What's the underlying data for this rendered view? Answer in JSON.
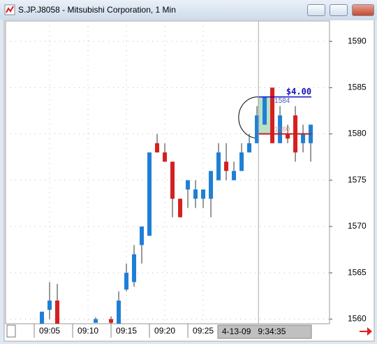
{
  "window": {
    "title": "S.JP.J8058 - Mitsubishi Corporation, 1 Min"
  },
  "chart_data": {
    "type": "candlestick",
    "ylim": [
      1559.5,
      1592.2
    ],
    "yticks": [
      1560,
      1565,
      1570,
      1575,
      1580,
      1585,
      1590
    ],
    "xlim": [
      -4.73,
      37.45
    ],
    "xticks": [
      {
        "value": 1,
        "label": "09:05"
      },
      {
        "value": 6,
        "label": "09:10"
      },
      {
        "value": 11,
        "label": "09:15"
      },
      {
        "value": 16,
        "label": "09:20"
      },
      {
        "value": 21,
        "label": "09:25"
      }
    ],
    "grid": true,
    "up_color": "#1e7fd6",
    "down_color": "#d42020",
    "candles": [
      {
        "x": 0,
        "open": 1559.4,
        "high": 1560.8,
        "low": 1559.4,
        "close": 1560.8
      },
      {
        "x": 1,
        "open": 1561,
        "high": 1564,
        "low": 1560,
        "close": 1562
      },
      {
        "x": 2,
        "open": 1562,
        "high": 1563.8,
        "low": 1559.4,
        "close": 1559.4
      },
      {
        "x": 7,
        "open": 1559.6,
        "high": 1560.2,
        "low": 1559.6,
        "close": 1560
      },
      {
        "x": 9,
        "open": 1560,
        "high": 1560.3,
        "low": 1559.4,
        "close": 1559.6
      },
      {
        "x": 10,
        "open": 1559.5,
        "high": 1563,
        "low": 1559.4,
        "close": 1562
      },
      {
        "x": 11,
        "open": 1563.2,
        "high": 1566,
        "low": 1563,
        "close": 1565
      },
      {
        "x": 12,
        "open": 1564,
        "high": 1568,
        "low": 1563.5,
        "close": 1567
      },
      {
        "x": 13,
        "open": 1568,
        "high": 1570,
        "low": 1566,
        "close": 1570
      },
      {
        "x": 14,
        "open": 1569,
        "high": 1578,
        "low": 1569,
        "close": 1578
      },
      {
        "x": 15,
        "open": 1579,
        "high": 1580,
        "low": 1578,
        "close": 1578
      },
      {
        "x": 16,
        "open": 1578,
        "high": 1579,
        "low": 1577,
        "close": 1577
      },
      {
        "x": 17,
        "open": 1577,
        "high": 1577,
        "low": 1571,
        "close": 1573
      },
      {
        "x": 18,
        "open": 1573,
        "high": 1573,
        "low": 1571,
        "close": 1571
      },
      {
        "x": 19,
        "open": 1574,
        "high": 1575,
        "low": 1572,
        "close": 1575
      },
      {
        "x": 20,
        "open": 1573,
        "high": 1575,
        "low": 1572,
        "close": 1574
      },
      {
        "x": 21,
        "open": 1573,
        "high": 1574,
        "low": 1572,
        "close": 1574
      },
      {
        "x": 22,
        "open": 1573,
        "high": 1576,
        "low": 1571,
        "close": 1576
      },
      {
        "x": 23,
        "open": 1575,
        "high": 1579,
        "low": 1575,
        "close": 1578
      },
      {
        "x": 24,
        "open": 1577,
        "high": 1579,
        "low": 1575,
        "close": 1576
      },
      {
        "x": 25,
        "open": 1575,
        "high": 1577,
        "low": 1575,
        "close": 1576
      },
      {
        "x": 26,
        "open": 1576,
        "high": 1579,
        "low": 1576,
        "close": 1578
      },
      {
        "x": 27,
        "open": 1578,
        "high": 1580,
        "low": 1578,
        "close": 1579
      },
      {
        "x": 28,
        "open": 1579,
        "high": 1583,
        "low": 1579,
        "close": 1582
      },
      {
        "x": 29,
        "open": 1581,
        "high": 1584,
        "low": 1581,
        "close": 1584
      },
      {
        "x": 30,
        "open": 1585,
        "high": 1585,
        "low": 1579,
        "close": 1579
      },
      {
        "x": 31,
        "open": 1579,
        "high": 1583,
        "low": 1579,
        "close": 1582
      },
      {
        "x": 32,
        "open": 1580,
        "high": 1581,
        "low": 1579,
        "close": 1579.5
      },
      {
        "x": 33,
        "open": 1582,
        "high": 1583,
        "low": 1577,
        "close": 1578
      },
      {
        "x": 34,
        "open": 1579,
        "high": 1581,
        "low": 1578,
        "close": 1580
      },
      {
        "x": 35,
        "open": 1579,
        "high": 1581,
        "low": 1577,
        "close": 1581
      }
    ],
    "annotation": {
      "label": "$4.00",
      "high": 1584,
      "low": 1580,
      "high_label": "1584",
      "low_label": "1580",
      "from": 28,
      "to": 35
    },
    "cursor": {
      "x": 28.2,
      "label": "4-13-09   9:34:35"
    }
  }
}
